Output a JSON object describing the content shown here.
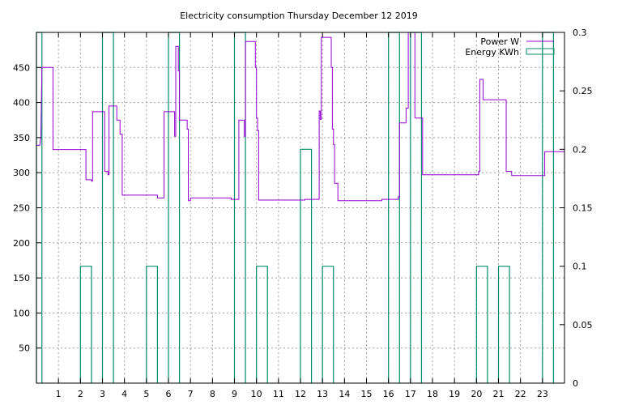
{
  "chart_data": {
    "type": "line",
    "title": "Electricity consumption Thursday December 12 2019",
    "grid": true,
    "legend_position": "top-right",
    "x": {
      "range": [
        0,
        24
      ],
      "ticks": [
        1,
        2,
        3,
        4,
        5,
        6,
        7,
        8,
        9,
        10,
        11,
        12,
        13,
        14,
        15,
        16,
        17,
        18,
        19,
        20,
        21,
        22,
        23
      ]
    },
    "y_left": {
      "range": [
        0,
        500
      ],
      "ticks": [
        50,
        100,
        150,
        200,
        250,
        300,
        350,
        400,
        450
      ]
    },
    "y_right": {
      "range": [
        0,
        0.3
      ],
      "ticks": [
        "0",
        "0.05",
        "0.1",
        "0.15",
        "0.2",
        "0.25",
        "0.3"
      ]
    },
    "series": [
      {
        "name": "Power W",
        "color": "#9400d3",
        "axis": "left",
        "style": "step",
        "points": [
          [
            0,
            339
          ],
          [
            0.15,
            339
          ],
          [
            0.2,
            350
          ],
          [
            0.25,
            450
          ],
          [
            0.75,
            450
          ],
          [
            0.75,
            333
          ],
          [
            2.25,
            333
          ],
          [
            2.25,
            290
          ],
          [
            2.5,
            290
          ],
          [
            2.5,
            288
          ],
          [
            2.55,
            288
          ],
          [
            2.55,
            387
          ],
          [
            3.1,
            387
          ],
          [
            3.1,
            302
          ],
          [
            3.25,
            302
          ],
          [
            3.25,
            297
          ],
          [
            3.3,
            297
          ],
          [
            3.3,
            395
          ],
          [
            3.65,
            395
          ],
          [
            3.65,
            375
          ],
          [
            3.8,
            375
          ],
          [
            3.8,
            355
          ],
          [
            3.9,
            355
          ],
          [
            3.9,
            268
          ],
          [
            5.5,
            268
          ],
          [
            5.5,
            264
          ],
          [
            5.8,
            264
          ],
          [
            5.8,
            387
          ],
          [
            6.28,
            387
          ],
          [
            6.28,
            352
          ],
          [
            6.33,
            352
          ],
          [
            6.33,
            480
          ],
          [
            6.45,
            480
          ],
          [
            6.45,
            445
          ],
          [
            6.5,
            445
          ],
          [
            6.5,
            375
          ],
          [
            6.85,
            375
          ],
          [
            6.85,
            362
          ],
          [
            6.9,
            362
          ],
          [
            6.9,
            260
          ],
          [
            7.0,
            260
          ],
          [
            7.0,
            264
          ],
          [
            8.85,
            264
          ],
          [
            8.85,
            262
          ],
          [
            9.2,
            262
          ],
          [
            9.2,
            375
          ],
          [
            9.45,
            375
          ],
          [
            9.45,
            352
          ],
          [
            9.5,
            352
          ],
          [
            9.5,
            487
          ],
          [
            9.95,
            487
          ],
          [
            9.95,
            450
          ],
          [
            10.0,
            450
          ],
          [
            10.0,
            378
          ],
          [
            10.05,
            378
          ],
          [
            10.05,
            360
          ],
          [
            10.1,
            360
          ],
          [
            10.1,
            261
          ],
          [
            12.2,
            261
          ],
          [
            12.2,
            262
          ],
          [
            12.85,
            262
          ],
          [
            12.85,
            388
          ],
          [
            12.9,
            388
          ],
          [
            12.9,
            376
          ],
          [
            12.95,
            376
          ],
          [
            12.95,
            493
          ],
          [
            13.4,
            493
          ],
          [
            13.4,
            450
          ],
          [
            13.45,
            450
          ],
          [
            13.45,
            362
          ],
          [
            13.5,
            362
          ],
          [
            13.5,
            340
          ],
          [
            13.55,
            340
          ],
          [
            13.55,
            285
          ],
          [
            13.7,
            285
          ],
          [
            13.7,
            260
          ],
          [
            15.7,
            260
          ],
          [
            15.7,
            262
          ],
          [
            16.45,
            262
          ],
          [
            16.45,
            266
          ],
          [
            16.5,
            266
          ],
          [
            16.5,
            371
          ],
          [
            16.8,
            371
          ],
          [
            16.8,
            392
          ],
          [
            16.9,
            392
          ],
          [
            16.9,
            500
          ],
          [
            17.2,
            500
          ],
          [
            17.2,
            378
          ],
          [
            17.55,
            378
          ],
          [
            17.55,
            297
          ],
          [
            20.1,
            297
          ],
          [
            20.1,
            302
          ],
          [
            20.15,
            302
          ],
          [
            20.15,
            433
          ],
          [
            20.3,
            433
          ],
          [
            20.3,
            404
          ],
          [
            21.35,
            404
          ],
          [
            21.35,
            302
          ],
          [
            21.6,
            302
          ],
          [
            21.6,
            296
          ],
          [
            23.1,
            296
          ],
          [
            23.1,
            330
          ],
          [
            24.0,
            330
          ],
          [
            24.0,
            345
          ]
        ]
      },
      {
        "name": "Energy KWh",
        "color": "#008b6b",
        "axis": "right",
        "style": "bars",
        "bars": [
          [
            0.0,
            0.25,
            0.3
          ],
          [
            2.0,
            2.5,
            0.1
          ],
          [
            3.0,
            3.5,
            0.3
          ],
          [
            5.0,
            5.5,
            0.1
          ],
          [
            6.0,
            6.5,
            0.3
          ],
          [
            9.0,
            9.5,
            0.3
          ],
          [
            10.0,
            10.5,
            0.1
          ],
          [
            12.0,
            12.5,
            0.2
          ],
          [
            13.0,
            13.5,
            0.1
          ],
          [
            16.0,
            16.5,
            0.3
          ],
          [
            17.0,
            17.5,
            0.3
          ],
          [
            20.0,
            20.5,
            0.1
          ],
          [
            21.0,
            21.5,
            0.1
          ],
          [
            23.0,
            23.5,
            0.3
          ]
        ]
      }
    ]
  }
}
